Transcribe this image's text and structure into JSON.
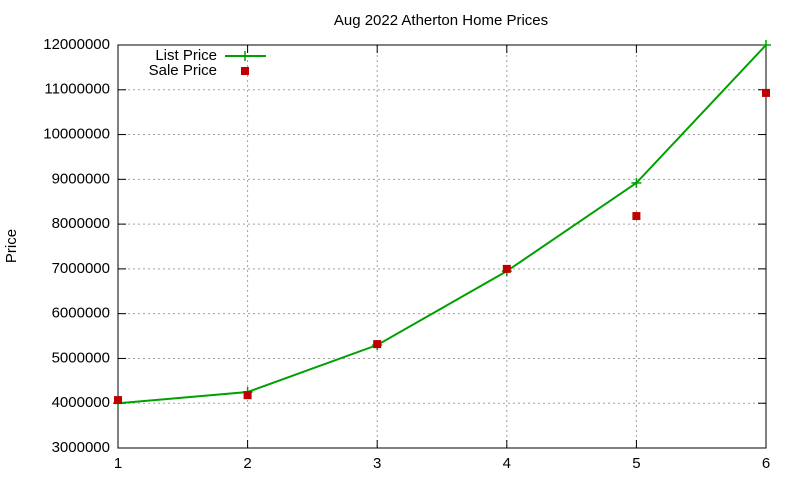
{
  "chart_data": {
    "type": "line",
    "title": "Aug 2022 Atherton Home Prices",
    "y_label": "Price",
    "x": [
      1,
      2,
      3,
      4,
      5,
      6
    ],
    "series": [
      {
        "name": "List Price",
        "color": "#00a000",
        "style": "linespoints",
        "values": [
          4000000,
          4250000,
          5300000,
          6950000,
          8920000,
          12000000
        ]
      },
      {
        "name": "Sale Price",
        "color": "#c00000",
        "style": "points",
        "values": [
          4070000,
          4180000,
          5320000,
          7000000,
          8180000,
          10930000
        ]
      }
    ],
    "xlim": [
      1,
      6
    ],
    "xticks": [
      1,
      2,
      3,
      4,
      5,
      6
    ],
    "ylim": [
      3000000,
      12000000
    ],
    "yticks": [
      3000000,
      4000000,
      5000000,
      6000000,
      7000000,
      8000000,
      9000000,
      10000000,
      11000000,
      12000000
    ],
    "grid": true,
    "legend": "top-left"
  }
}
